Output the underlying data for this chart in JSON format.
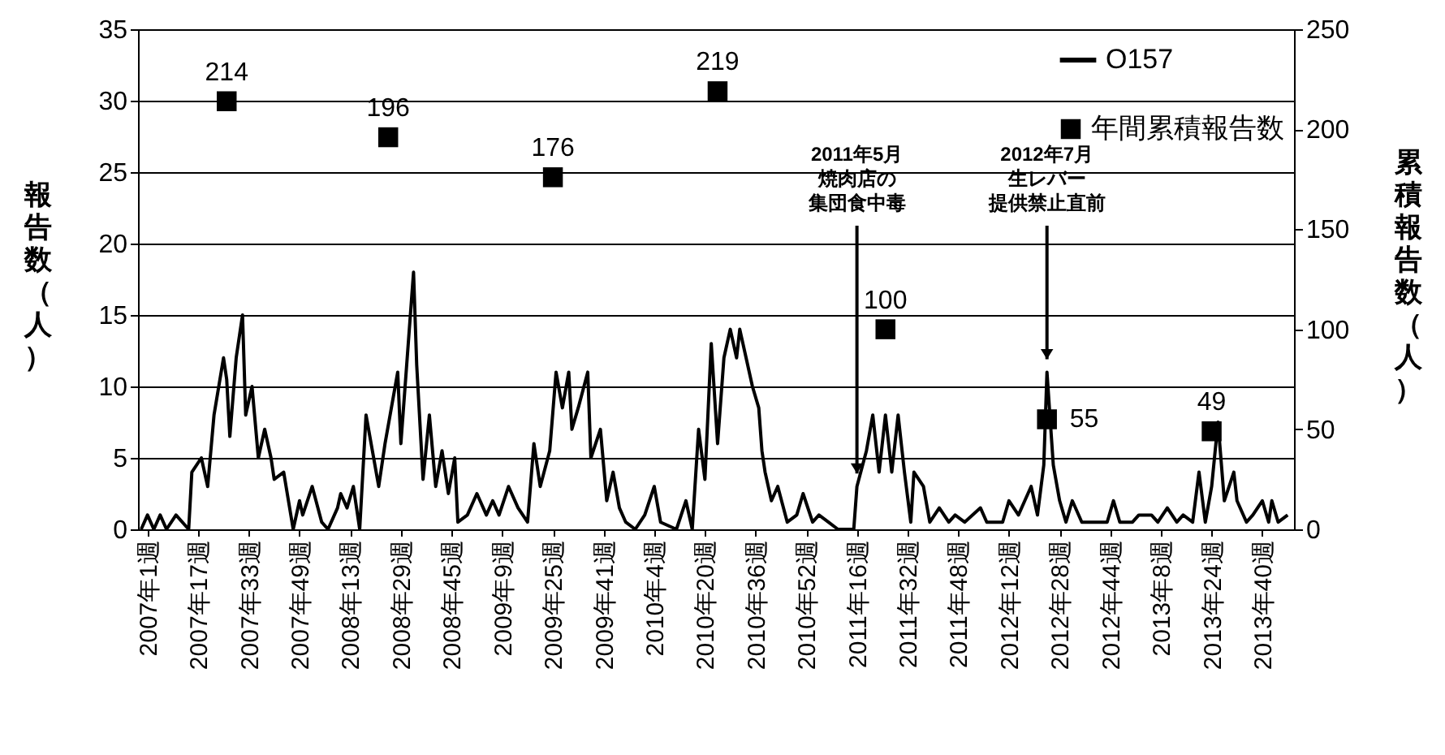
{
  "chart_data": {
    "type": "line",
    "ylabel": "報告数（人）",
    "y2label": "累積報告数（人）",
    "xlim": [
      "2006-12-11",
      "2013-12-09"
    ],
    "xticks": [
      {
        "value": "2007-01-01",
        "label": "2007年1週"
      },
      {
        "value": "2007-04-23",
        "label": "2007年17週"
      },
      {
        "value": "2007-08-13",
        "label": "2007年33週"
      },
      {
        "value": "2007-12-03",
        "label": "2007年49週"
      },
      {
        "value": "2008-03-24",
        "label": "2008年13週"
      },
      {
        "value": "2008-07-14",
        "label": "2008年29週"
      },
      {
        "value": "2008-11-03",
        "label": "2008年45週"
      },
      {
        "value": "2009-02-23",
        "label": "2009年9週"
      },
      {
        "value": "2009-06-15",
        "label": "2009年25週"
      },
      {
        "value": "2009-10-05",
        "label": "2009年41週"
      },
      {
        "value": "2010-01-25",
        "label": "2010年4週"
      },
      {
        "value": "2010-05-17",
        "label": "2010年20週"
      },
      {
        "value": "2010-09-06",
        "label": "2010年36週"
      },
      {
        "value": "2010-12-27",
        "label": "2010年52週"
      },
      {
        "value": "2011-04-18",
        "label": "2011年16週"
      },
      {
        "value": "2011-08-08",
        "label": "2011年32週"
      },
      {
        "value": "2011-11-28",
        "label": "2011年48週"
      },
      {
        "value": "2012-03-19",
        "label": "2012年12週"
      },
      {
        "value": "2012-07-09",
        "label": "2012年28週"
      },
      {
        "value": "2012-10-29",
        "label": "2012年44週"
      },
      {
        "value": "2013-02-18",
        "label": "2013年8週"
      },
      {
        "value": "2013-06-10",
        "label": "2013年24週"
      },
      {
        "value": "2013-09-30",
        "label": "2013年40週"
      }
    ],
    "ylim": [
      0,
      35
    ],
    "yticks": [
      0,
      5,
      10,
      15,
      20,
      25,
      30,
      35
    ],
    "y2lim": [
      0,
      250
    ],
    "y2ticks": [
      0,
      50,
      100,
      150,
      200,
      250
    ],
    "grid": "y",
    "legend": "top right",
    "annotations": [
      "2011年5月",
      "焼肉店の",
      {
        "text": "集団食中毒",
        "x": "2011-04-18",
        "y": 3
      },
      "2012年7月",
      "生レバー",
      {
        "text": "提供禁止直前",
        "x": "2012-06-11",
        "y": 11
      }
    ],
    "series": [
      {
        "name": "O157",
        "color": "#000000",
        "x": [
          "2006-12-18",
          "2007-01-01",
          "2007-01-15",
          "2007-01-29",
          "2007-02-12",
          "2007-03-05",
          "2007-04-02",
          "2007-04-09",
          "2007-04-30",
          "2007-05-14",
          "2007-05-28",
          "2007-06-18",
          "2007-06-25",
          "2007-07-02",
          "2007-07-16",
          "2007-07-30",
          "2007-08-06",
          "2007-08-20",
          "2007-09-03",
          "2007-09-17",
          "2007-10-01",
          "2007-10-08",
          "2007-10-29",
          "2007-11-19",
          "2007-12-03",
          "2007-12-10",
          "2007-12-31",
          "2008-01-21",
          "2008-02-04",
          "2008-02-25",
          "2008-03-03",
          "2008-03-17",
          "2008-03-31",
          "2008-04-14",
          "2008-04-28",
          "2008-05-12",
          "2008-05-26",
          "2008-06-09",
          "2008-07-07",
          "2008-07-14",
          "2008-08-11",
          "2008-08-18",
          "2008-09-01",
          "2008-09-15",
          "2008-09-29",
          "2008-10-13",
          "2008-10-27",
          "2008-11-10",
          "2008-11-17",
          "2008-12-08",
          "2008-12-29",
          "2009-01-19",
          "2009-02-02",
          "2009-02-16",
          "2009-03-09",
          "2009-03-30",
          "2009-04-20",
          "2009-05-04",
          "2009-05-18",
          "2009-06-08",
          "2009-06-22",
          "2009-07-06",
          "2009-07-20",
          "2009-07-27",
          "2009-08-10",
          "2009-08-31",
          "2009-09-07",
          "2009-09-28",
          "2009-10-12",
          "2009-10-26",
          "2009-11-09",
          "2009-11-23",
          "2009-12-14",
          "2010-01-04",
          "2010-01-25",
          "2010-02-08",
          "2010-03-15",
          "2010-04-05",
          "2010-04-19",
          "2010-05-03",
          "2010-05-17",
          "2010-05-31",
          "2010-06-14",
          "2010-06-28",
          "2010-07-12",
          "2010-07-26",
          "2010-08-02",
          "2010-08-16",
          "2010-08-30",
          "2010-09-13",
          "2010-09-20",
          "2010-09-27",
          "2010-10-11",
          "2010-10-25",
          "2010-11-15",
          "2010-12-06",
          "2010-12-20",
          "2011-01-10",
          "2011-01-24",
          "2011-02-14",
          "2011-03-07",
          "2011-04-11",
          "2011-04-18",
          "2011-05-09",
          "2011-05-23",
          "2011-06-06",
          "2011-06-20",
          "2011-07-04",
          "2011-07-18",
          "2011-08-01",
          "2011-08-15",
          "2011-08-22",
          "2011-09-12",
          "2011-09-26",
          "2011-10-17",
          "2011-11-07",
          "2011-11-21",
          "2011-12-12",
          "2012-01-16",
          "2012-01-30",
          "2012-03-05",
          "2012-03-19",
          "2012-04-09",
          "2012-04-23",
          "2012-05-07",
          "2012-05-21",
          "2012-06-04",
          "2012-06-11",
          "2012-06-25",
          "2012-07-09",
          "2012-07-23",
          "2012-08-06",
          "2012-08-27",
          "2012-09-24",
          "2012-10-22",
          "2012-11-05",
          "2012-11-19",
          "2012-12-17",
          "2012-12-31",
          "2013-01-28",
          "2013-02-11",
          "2013-03-04",
          "2013-03-25",
          "2013-04-08",
          "2013-04-29",
          "2013-05-13",
          "2013-05-27",
          "2013-06-10",
          "2013-06-24",
          "2013-07-08",
          "2013-07-29",
          "2013-08-05",
          "2013-08-26",
          "2013-09-09",
          "2013-09-30",
          "2013-10-14",
          "2013-10-21",
          "2013-11-04",
          "2013-11-25"
        ],
        "values": [
          0,
          1,
          0,
          1,
          0,
          1,
          0,
          4,
          5,
          3,
          8,
          12,
          10.5,
          6.5,
          12,
          15,
          8,
          10,
          5,
          7,
          5,
          3.5,
          4,
          0,
          2,
          1,
          3,
          0.5,
          0,
          1.5,
          2.5,
          1.5,
          3,
          0,
          8,
          5.5,
          3,
          6,
          11,
          6,
          18,
          11.5,
          3.5,
          8,
          3,
          5.5,
          2.5,
          5,
          0.5,
          1,
          2.5,
          1,
          2,
          1,
          3,
          1.5,
          0.5,
          6,
          3,
          5.5,
          11,
          8.5,
          11,
          7,
          8.5,
          11,
          5,
          7,
          2,
          4,
          1.5,
          0.5,
          0,
          1,
          3,
          0.5,
          0,
          2,
          0,
          7,
          3.5,
          13,
          6,
          12,
          14,
          12,
          14,
          12,
          10,
          8.5,
          5.5,
          4,
          2,
          3,
          0.5,
          1,
          2.5,
          0.5,
          1,
          0.5,
          0,
          0,
          3,
          5.5,
          8,
          4,
          8,
          4,
          8,
          4,
          0.5,
          4,
          3,
          0.5,
          1.5,
          0.5,
          1,
          0.5,
          1.5,
          0.5,
          0.5,
          2,
          1,
          2,
          3,
          1,
          4.5,
          11,
          4.5,
          2,
          0.5,
          2,
          0.5,
          0.5,
          0.5,
          2,
          0.5,
          0.5,
          1,
          1,
          0.5,
          1.5,
          0.5,
          1,
          0.5,
          4,
          0.5,
          3,
          7.5,
          2,
          4,
          2,
          0.5,
          1,
          2,
          0.5,
          2,
          0.5,
          1
        ]
      },
      {
        "name": "年間累積報告数",
        "type": "scatter",
        "axis": "y2",
        "marker": "square",
        "data_labels": true,
        "color": "#000000",
        "x": [
          "2007-06-25",
          "2008-06-16",
          "2009-06-15",
          "2010-06-14",
          "2011-06-20",
          "2012-06-11",
          "2013-06-10"
        ],
        "values": [
          214,
          196,
          176,
          219,
          100,
          55,
          49
        ]
      }
    ]
  }
}
